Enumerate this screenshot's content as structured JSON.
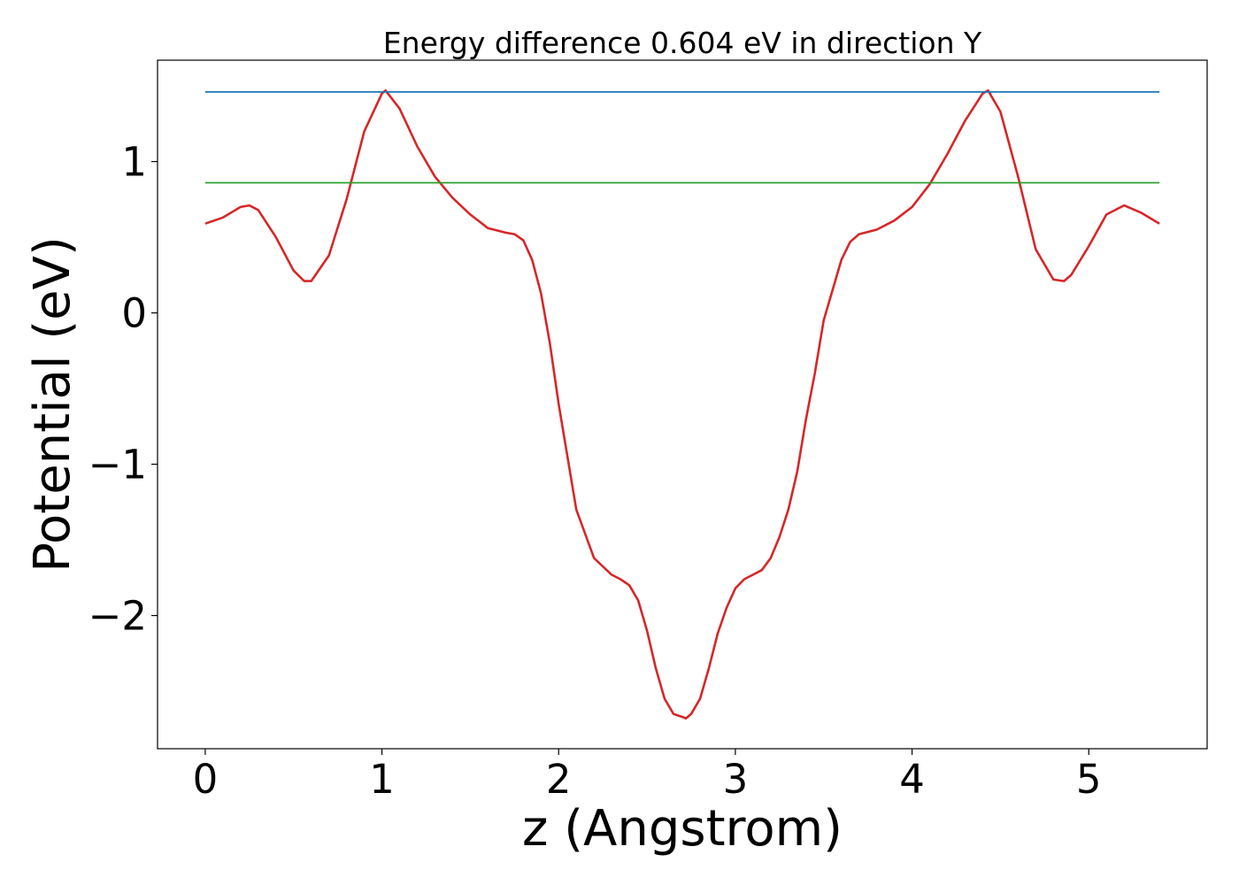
{
  "chart_data": {
    "type": "line",
    "title": "Energy difference 0.604 eV in direction Y",
    "xlabel": "z (Angstrom)",
    "ylabel": "Potential (eV)",
    "xlim": [
      -0.27,
      5.67
    ],
    "ylim": [
      -2.88,
      1.67
    ],
    "x_ticks": [
      0,
      1,
      2,
      3,
      4,
      5
    ],
    "x_tick_labels": [
      "0",
      "1",
      "2",
      "3",
      "4",
      "5"
    ],
    "y_ticks": [
      1,
      0,
      -1,
      -2
    ],
    "y_tick_labels": [
      "1",
      "0",
      "−1",
      "−2"
    ],
    "grid": false,
    "legend": "none",
    "series": [
      {
        "color": "#d62728",
        "x": [
          0.0,
          0.1,
          0.2,
          0.25,
          0.3,
          0.4,
          0.5,
          0.56,
          0.6,
          0.7,
          0.8,
          0.9,
          1.0,
          1.02,
          1.1,
          1.2,
          1.3,
          1.4,
          1.5,
          1.6,
          1.7,
          1.75,
          1.8,
          1.85,
          1.9,
          1.95,
          2.0,
          2.1,
          2.2,
          2.3,
          2.35,
          2.4,
          2.45,
          2.5,
          2.55,
          2.6,
          2.65,
          2.7,
          2.72,
          2.75,
          2.8,
          2.85,
          2.9,
          2.95,
          3.0,
          3.05,
          3.1,
          3.15,
          3.2,
          3.25,
          3.3,
          3.35,
          3.4,
          3.45,
          3.5,
          3.55,
          3.6,
          3.65,
          3.7,
          3.8,
          3.9,
          4.0,
          4.1,
          4.2,
          4.3,
          4.4,
          4.43,
          4.5,
          4.6,
          4.7,
          4.8,
          4.86,
          4.9,
          5.0,
          5.1,
          5.2,
          5.3,
          5.4
        ],
        "y": [
          0.59,
          0.63,
          0.7,
          0.71,
          0.68,
          0.5,
          0.28,
          0.21,
          0.21,
          0.38,
          0.75,
          1.2,
          1.45,
          1.47,
          1.35,
          1.1,
          0.9,
          0.76,
          0.65,
          0.56,
          0.53,
          0.52,
          0.48,
          0.35,
          0.13,
          -0.2,
          -0.6,
          -1.3,
          -1.62,
          -1.73,
          -1.76,
          -1.8,
          -1.9,
          -2.1,
          -2.35,
          -2.55,
          -2.65,
          -2.67,
          -2.68,
          -2.65,
          -2.55,
          -2.35,
          -2.12,
          -1.95,
          -1.82,
          -1.76,
          -1.73,
          -1.7,
          -1.62,
          -1.48,
          -1.3,
          -1.05,
          -0.7,
          -0.4,
          -0.05,
          0.15,
          0.35,
          0.47,
          0.52,
          0.55,
          0.61,
          0.7,
          0.85,
          1.05,
          1.27,
          1.45,
          1.47,
          1.33,
          0.9,
          0.42,
          0.22,
          0.21,
          0.25,
          0.44,
          0.65,
          0.71,
          0.66,
          0.59
        ]
      },
      {
        "color": "#1f77b4",
        "x": [
          0.0,
          5.4
        ],
        "y": [
          1.46,
          1.46
        ]
      },
      {
        "color": "#2ca02c",
        "x": [
          0.0,
          5.4
        ],
        "y": [
          0.86,
          0.86
        ]
      }
    ]
  }
}
